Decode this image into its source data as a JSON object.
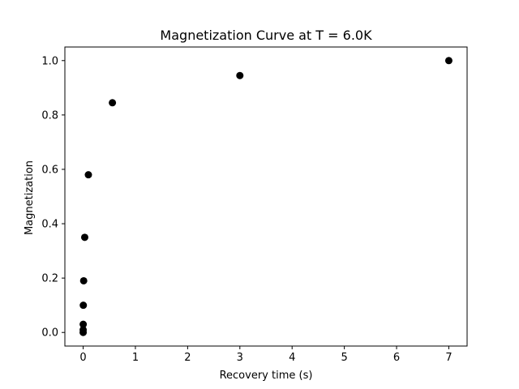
{
  "chart_data": {
    "type": "scatter",
    "title": "Magnetization Curve at T = 6.0K",
    "xlabel": "Recovery time (s)",
    "ylabel": "Magnetization",
    "xlim": [
      -0.35,
      7.35
    ],
    "ylim": [
      -0.05,
      1.05
    ],
    "xticks": [
      0,
      1,
      2,
      3,
      4,
      5,
      6,
      7
    ],
    "yticks": [
      0.0,
      0.2,
      0.4,
      0.6,
      0.8,
      1.0
    ],
    "xtick_labels": [
      "0",
      "1",
      "2",
      "3",
      "4",
      "5",
      "6",
      "7"
    ],
    "ytick_labels": [
      "0.0",
      "0.2",
      "0.4",
      "0.6",
      "0.8",
      "1.0"
    ],
    "grid": false,
    "marker_color": "#000000",
    "series": [
      {
        "x": [
          0.0001,
          0.0003,
          0.001,
          0.003,
          0.01,
          0.03,
          0.1,
          0.56,
          3.0,
          7.0
        ],
        "y": [
          0.0,
          0.01,
          0.03,
          0.1,
          0.19,
          0.35,
          0.58,
          0.845,
          0.945,
          1.0
        ]
      }
    ]
  }
}
